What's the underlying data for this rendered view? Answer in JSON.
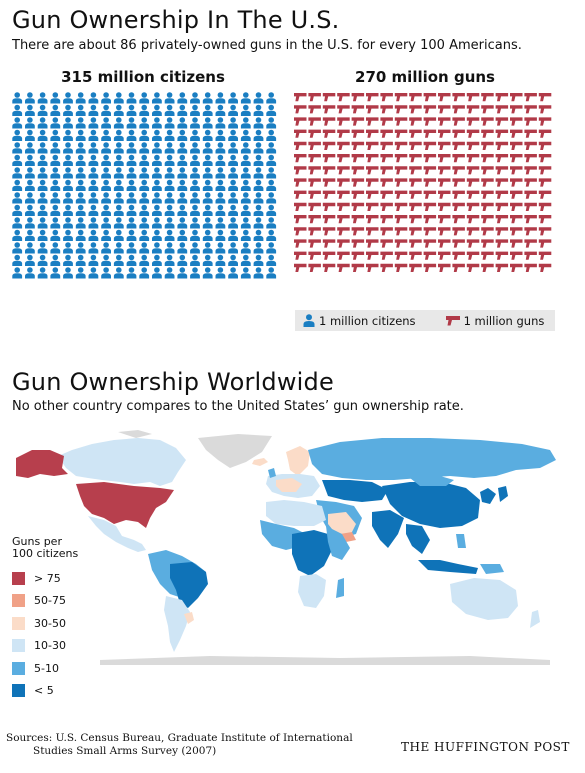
{
  "section1": {
    "title": "Gun Ownership In The U.S.",
    "subtitle": "There are about 86 privately-owned guns in the U.S. for every 100 Americans."
  },
  "chart_data": [
    {
      "type": "pictograph",
      "series": [
        {
          "name": "315 million citizens",
          "values": [
            315
          ],
          "unit": "1 million citizens",
          "icon": "person-icon",
          "color": "#1a7ec2"
        },
        {
          "name": "270 million guns",
          "values": [
            270
          ],
          "unit": "1 million guns",
          "icon": "pistol-icon",
          "color": "#b13a48"
        }
      ],
      "legend": [
        "1 million citizens",
        "1 million guns"
      ]
    },
    {
      "type": "choropleth",
      "title": "Gun Ownership Worldwide",
      "subtitle": "No other country compares to the United States' gun ownership rate.",
      "legend_title": "Guns per 100 citizens",
      "categories": [
        {
          "label": "> 75",
          "color": "#b73f4d"
        },
        {
          "label": "50-75",
          "color": "#f0a187"
        },
        {
          "label": "30-50",
          "color": "#fbdcc8"
        },
        {
          "label": "10-30",
          "color": "#cfe5f5"
        },
        {
          "label": "5-10",
          "color": "#5aade0"
        },
        {
          "label": "< 5",
          "color": "#0f73b8"
        }
      ]
    }
  ],
  "legend": {
    "citizens_label": "1 million citizens",
    "guns_label": "1 million guns"
  },
  "section2": {
    "title": "Gun Ownership Worldwide",
    "subtitle": "No other country compares to the United States’ gun ownership rate.",
    "legend_head_1": "Guns per",
    "legend_head_2": "100 citizens"
  },
  "footer": {
    "sources_1": "Sources: U.S. Census Bureau, Graduate Institute of International",
    "sources_2": "Studies Small Arms Survey (2007)",
    "brand": "THE HUFFINGTON POST"
  }
}
